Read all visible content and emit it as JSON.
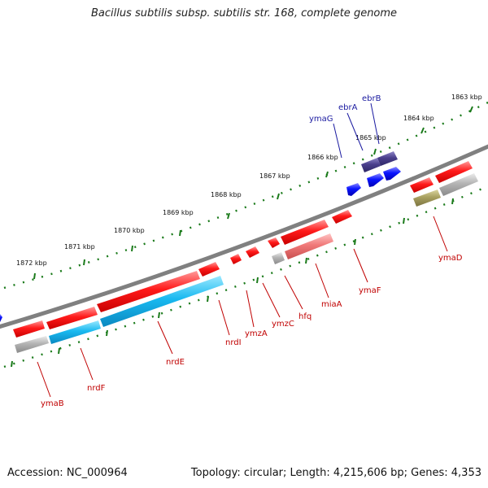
{
  "title": "Bacillus subtilis subsp. subtilis str. 168, complete genome",
  "footer": {
    "accession": "Accession: NC_000964",
    "summary": "Topology: circular; Length: 4,215,606 bp; Genes: 4,353"
  },
  "scale_labels": [
    {
      "text": "1872 kbp"
    },
    {
      "text": "1871 kbp"
    },
    {
      "text": "1870 kbp"
    },
    {
      "text": "1869 kbp"
    },
    {
      "text": "1868 kbp"
    },
    {
      "text": "1867 kbp"
    },
    {
      "text": "1866 kbp"
    },
    {
      "text": "1865 kbp"
    },
    {
      "text": "1864 kbp"
    },
    {
      "text": "1863 kbp"
    }
  ],
  "genes_forward": [
    {
      "name": "ymaG"
    },
    {
      "name": "ebrA"
    },
    {
      "name": "ebrB"
    }
  ],
  "genes_reverse": [
    {
      "name": "ymaB"
    },
    {
      "name": "nrdF"
    },
    {
      "name": "nrdE"
    },
    {
      "name": "nrdI"
    },
    {
      "name": "ymzA"
    },
    {
      "name": "ymzC"
    },
    {
      "name": "hfq"
    },
    {
      "name": "miaA"
    },
    {
      "name": "ymaF"
    },
    {
      "name": "ymaD"
    }
  ],
  "colors": {
    "backbone": "#808080",
    "tick": "#1a7a1a",
    "gene_reverse": "#ff1a1a",
    "gene_forward": "#0a14ff",
    "feature_cds": "#19b9f0",
    "feature_gray": "#b4b4b4",
    "feature_pink": "#f07878",
    "feature_purple": "#4a3f8c",
    "feature_olive": "#a8a060",
    "label_reverse": "#c00000",
    "label_forward": "#1a1aa0"
  }
}
